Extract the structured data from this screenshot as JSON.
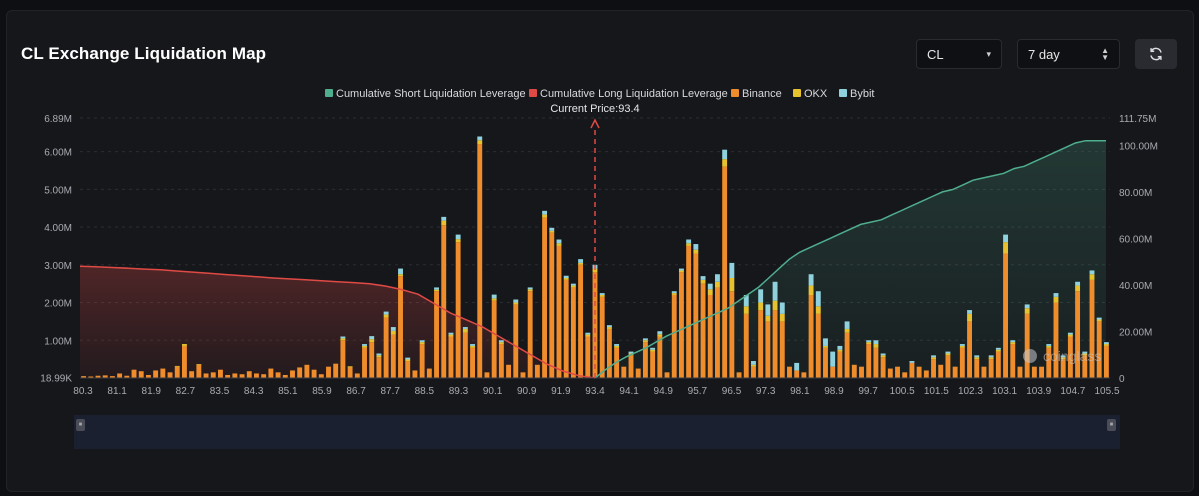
{
  "header": {
    "title": "CL Exchange Liquidation Map",
    "symbol_select": "CL",
    "range_select": "7 day",
    "refresh_icon": "refresh-icon",
    "caret_icon": "▾"
  },
  "colors": {
    "short_line": "#4fae8e",
    "long_line": "#e04a45",
    "binance": "#ef8c2b",
    "okx": "#e8c22e",
    "bybit": "#8fd1dc",
    "background": "#16171b"
  },
  "chart_data": {
    "type": "bar",
    "legend": [
      "Cumulative Short Liquidation Leverage",
      "Cumulative Long Liquidation Leverage",
      "Binance",
      "OKX",
      "Bybit"
    ],
    "legend_placement": "top-center",
    "current_price_label": "Current Price:93.4",
    "current_price": 93.4,
    "x_ticks": [
      "80.3",
      "81.1",
      "81.9",
      "82.7",
      "83.5",
      "84.3",
      "85.1",
      "85.9",
      "86.7",
      "87.7",
      "88.5",
      "89.3",
      "90.1",
      "90.9",
      "91.9",
      "93.4",
      "94.1",
      "94.9",
      "95.7",
      "96.5",
      "97.3",
      "98.1",
      "98.9",
      "99.7",
      "100.5",
      "101.5",
      "102.3",
      "103.1",
      "103.9",
      "104.7",
      "105.5"
    ],
    "y_left_ticks": [
      "18.99K",
      "1.00M",
      "2.00M",
      "3.00M",
      "4.00M",
      "5.00M",
      "6.00M",
      "6.89M"
    ],
    "y_left_values": [
      0.019,
      1,
      2,
      3,
      4,
      5,
      6,
      6.89
    ],
    "y_left_range": [
      0,
      6.89
    ],
    "y_right_ticks": [
      "0",
      "20.00M",
      "40.00M",
      "60.00M",
      "80.00M",
      "100.00M",
      "111.75M"
    ],
    "y_right_values": [
      0,
      20,
      40,
      60,
      80,
      100,
      111.75
    ],
    "y_right_range": [
      0,
      111.75
    ],
    "unit": "M",
    "bars": {
      "binance": [
        0.05,
        0.04,
        0.06,
        0.07,
        0.05,
        0.12,
        0.06,
        0.22,
        0.18,
        0.08,
        0.2,
        0.25,
        0.15,
        0.3,
        0.85,
        0.18,
        0.35,
        0.12,
        0.15,
        0.22,
        0.08,
        0.12,
        0.1,
        0.18,
        0.12,
        0.1,
        0.25,
        0.15,
        0.08,
        0.2,
        0.28,
        0.35,
        0.22,
        0.1,
        0.3,
        0.38,
        1.0,
        0.28,
        0.12,
        0.8,
        0.95,
        0.55,
        1.6,
        1.15,
        2.7,
        0.45,
        0.2,
        0.9,
        0.25,
        2.3,
        4.05,
        1.1,
        3.6,
        1.2,
        0.8,
        6.2,
        0.15,
        2.05,
        0.9,
        0.35,
        1.95,
        0.15,
        2.3,
        0.35,
        4.25,
        3.85,
        3.5,
        2.6,
        2.4,
        3.0,
        1.1,
        2.8,
        2.15,
        1.3,
        0.8,
        0.3,
        0.6,
        0.25,
        0.95,
        0.7,
        1.1,
        0.15,
        2.2,
        2.8,
        3.5,
        3.3,
        2.5,
        2.2,
        2.4,
        5.6,
        2.3,
        0.15,
        1.7,
        0.3,
        1.8,
        1.5,
        1.8,
        1.5,
        0.3,
        0.2,
        0.15,
        2.2,
        1.7,
        0.8,
        0.3,
        0.7,
        1.2,
        0.35,
        0.3,
        0.9,
        0.8,
        0.55,
        0.25,
        0.3,
        0.15,
        0.4,
        0.3,
        0.2,
        0.5,
        0.35,
        0.6,
        0.3,
        0.8,
        1.5,
        0.5,
        0.3,
        0.5,
        0.7,
        3.3,
        0.9,
        0.3,
        1.7,
        0.3,
        0.3,
        0.8,
        2.0,
        0.5,
        1.1,
        2.3,
        0.6,
        2.6,
        1.5,
        0.85
      ],
      "okx": [
        0,
        0,
        0,
        0,
        0,
        0,
        0,
        0,
        0,
        0,
        0,
        0,
        0,
        0.02,
        0.05,
        0,
        0.02,
        0,
        0,
        0,
        0,
        0,
        0,
        0,
        0,
        0,
        0,
        0,
        0,
        0,
        0,
        0,
        0,
        0,
        0,
        0,
        0.05,
        0.03,
        0,
        0.05,
        0.08,
        0.05,
        0.08,
        0.1,
        0.05,
        0.04,
        0,
        0.05,
        0,
        0.04,
        0.12,
        0.05,
        0.08,
        0.1,
        0.05,
        0.1,
        0,
        0.06,
        0.05,
        0,
        0.05,
        0,
        0.05,
        0,
        0.08,
        0.05,
        0.07,
        0.05,
        0.05,
        0.05,
        0.05,
        0.1,
        0.05,
        0.05,
        0.05,
        0,
        0.05,
        0,
        0.05,
        0.05,
        0.06,
        0,
        0.05,
        0.05,
        0.07,
        0.1,
        0.1,
        0.15,
        0.15,
        0.2,
        0.35,
        0,
        0.2,
        0.05,
        0.2,
        0.15,
        0.25,
        0.2,
        0,
        0,
        0,
        0.25,
        0.2,
        0.05,
        0,
        0.05,
        0.1,
        0,
        0,
        0.05,
        0.1,
        0.05,
        0,
        0,
        0,
        0,
        0,
        0,
        0.05,
        0,
        0.05,
        0,
        0.05,
        0.2,
        0.05,
        0,
        0.05,
        0.05,
        0.3,
        0.05,
        0,
        0.15,
        0,
        0,
        0.05,
        0.15,
        0.05,
        0.05,
        0.15,
        0.05,
        0.15,
        0.05,
        0.05
      ],
      "bybit": [
        0,
        0,
        0,
        0,
        0,
        0,
        0,
        0,
        0,
        0,
        0,
        0,
        0,
        0,
        0,
        0,
        0,
        0,
        0,
        0,
        0,
        0,
        0,
        0,
        0,
        0,
        0,
        0,
        0,
        0,
        0,
        0,
        0,
        0,
        0,
        0,
        0.05,
        0,
        0,
        0.05,
        0.08,
        0.05,
        0.08,
        0.1,
        0.15,
        0.05,
        0,
        0.05,
        0,
        0.06,
        0.1,
        0.05,
        0.12,
        0.05,
        0.05,
        0.1,
        0,
        0.1,
        0.05,
        0,
        0.08,
        0,
        0.05,
        0,
        0.1,
        0.08,
        0.1,
        0.06,
        0.05,
        0.1,
        0.05,
        0.1,
        0.05,
        0.05,
        0.05,
        0,
        0.05,
        0,
        0.05,
        0.05,
        0.08,
        0,
        0.05,
        0.05,
        0.1,
        0.15,
        0.1,
        0.15,
        0.2,
        0.25,
        0.4,
        0,
        0.3,
        0.1,
        0.35,
        0.3,
        0.5,
        0.3,
        0,
        0.2,
        0,
        0.3,
        0.4,
        0.2,
        0.4,
        0.1,
        0.2,
        0,
        0,
        0.05,
        0.1,
        0.05,
        0,
        0,
        0,
        0.05,
        0,
        0,
        0.05,
        0,
        0.05,
        0,
        0.05,
        0.1,
        0.05,
        0,
        0.05,
        0.05,
        0.2,
        0.05,
        0,
        0.1,
        0,
        0,
        0.05,
        0.1,
        0.05,
        0.05,
        0.1,
        0.05,
        0.1,
        0.05,
        0.05
      ]
    },
    "short_cumulative": [
      0,
      3.5,
      6.5,
      9,
      11,
      13,
      15.5,
      18,
      20,
      22,
      24,
      26,
      28,
      30,
      33,
      36,
      39,
      43,
      47,
      51,
      54,
      56,
      58,
      60,
      62,
      64,
      66,
      67,
      68,
      70,
      72,
      74,
      76,
      78,
      80,
      81,
      83,
      85,
      86,
      87,
      88,
      90,
      91,
      93,
      95,
      97,
      99,
      101,
      102,
      102,
      102
    ],
    "long_cumulative": [
      48,
      47.8,
      47.5,
      47.2,
      46.8,
      46.5,
      46,
      45.5,
      45,
      44.5,
      44,
      43.5,
      43,
      42.6,
      42.2,
      41.8,
      41.4,
      41,
      40.5,
      39.5,
      38,
      36,
      32,
      28,
      25,
      22,
      18,
      14,
      10,
      6,
      3,
      1,
      0
    ]
  }
}
